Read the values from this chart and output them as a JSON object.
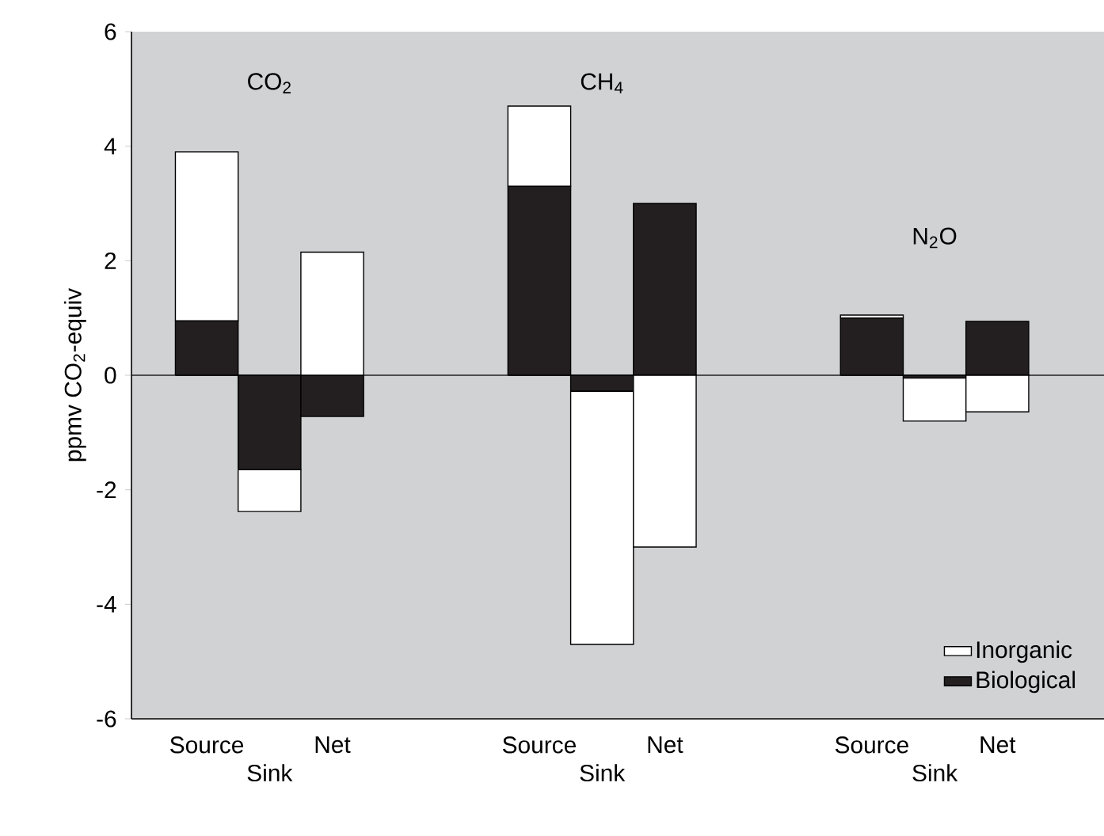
{
  "chart_data": {
    "type": "bar",
    "stacked": true,
    "ylabel": "ppmv CO$_{2}$-equiv",
    "categories": [
      "Source",
      "Sink",
      "Net",
      "Source",
      "Sink",
      "Net",
      "Source",
      "Sink",
      "Net"
    ],
    "series": [
      {
        "name": "Biological",
        "color": "#231f20",
        "values": [
          0.95,
          -1.65,
          -0.72,
          3.3,
          -0.28,
          3.0,
          1.0,
          -0.05,
          0.94
        ]
      },
      {
        "name": "Inorganic",
        "color": "#ffffff",
        "values": [
          2.95,
          -0.73,
          2.15,
          1.4,
          -4.42,
          -3.0,
          0.05,
          -0.75,
          -0.64
        ]
      }
    ],
    "ylim": [
      -6,
      6
    ],
    "yticks": [
      -6,
      -4,
      -2,
      0,
      2,
      4,
      6
    ],
    "ref_lines": [
      {
        "axis": "y",
        "value": 0,
        "color": "#231f20"
      }
    ],
    "annotations": [
      "CO$_{2}$",
      "CH$_{4}$",
      "N$_{2}$O"
    ],
    "legend": "bottom right"
  }
}
